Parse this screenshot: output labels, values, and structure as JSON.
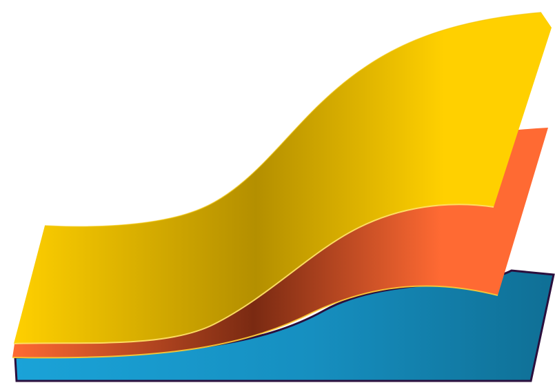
{
  "layers": [
    {
      "name": "blue-base",
      "color_light": "#1aa3d8",
      "color_mid": "#168fc0",
      "color_dark": "#0f6f95",
      "outline": "#2b0f3d"
    },
    {
      "name": "orange-middle",
      "color_light": "#ff6a33",
      "color_mid": "#d2552a",
      "color_dark": "#7a2a12",
      "edge_highlight": "#ffcc33"
    },
    {
      "name": "yellow-top",
      "color_light": "#ffd000",
      "color_mid": "#d6a800",
      "color_dark": "#b48f00",
      "edge_highlight": "#ffe066"
    }
  ]
}
